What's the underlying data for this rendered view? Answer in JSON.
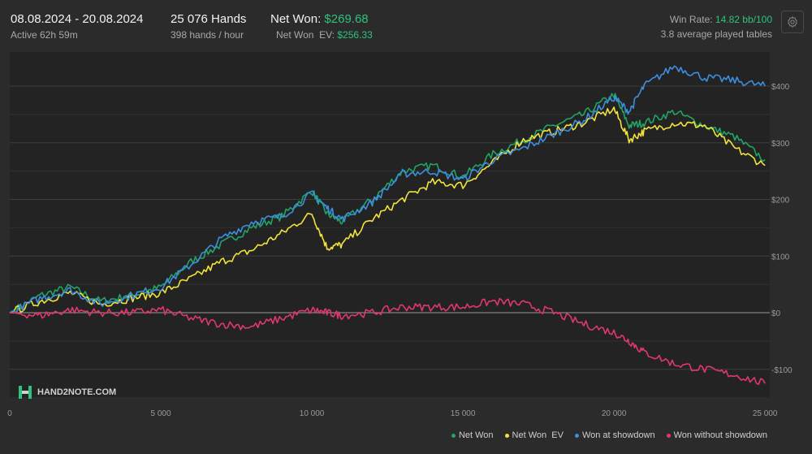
{
  "header": {
    "date_range": "08.08.2024 - 20.08.2024",
    "active": "Active 62h 59m",
    "hands": "25 076 Hands",
    "hands_per_hour": "398 hands / hour",
    "net_won_label": "Net Won:",
    "net_won_value": "$269.68",
    "net_won_ev_label": "Net Won  EV:",
    "net_won_ev_value": "$256.33",
    "win_rate_label": "Win Rate:",
    "win_rate_value": "14.82 bb/100",
    "avg_tables": "3.8 average played tables"
  },
  "logo": {
    "text": "HAND2NOTE.COM"
  },
  "icons": {
    "settings": "gear-icon",
    "logo": "hand2note-logo-icon"
  },
  "colors": {
    "net_won": "#22a464",
    "net_won_ev": "#f2e33a",
    "showdown": "#3c8ee0",
    "non_showdown": "#e0386a",
    "accent_green": "#2ec27e"
  },
  "chart_data": {
    "type": "line",
    "xlabel": "",
    "ylabel": "",
    "xlim": [
      0,
      25076
    ],
    "ylim": [
      -130,
      450
    ],
    "x_ticks": [
      0,
      5000,
      10000,
      15000,
      20000,
      25000
    ],
    "x_tick_labels": [
      "0",
      "5 000",
      "10 000",
      "15 000",
      "20 000",
      "25 000"
    ],
    "y_ticks": [
      400,
      300,
      200,
      100,
      0,
      -100
    ],
    "y_tick_labels": [
      "$400",
      "$300",
      "$200",
      "$100",
      "$0",
      "-$100"
    ],
    "grid": true,
    "legend_position": "bottom-right",
    "x": [
      0,
      1000,
      2000,
      3000,
      4000,
      5000,
      6000,
      7000,
      8000,
      9000,
      10000,
      10500,
      11000,
      12000,
      13000,
      14000,
      15000,
      16000,
      17000,
      18000,
      19000,
      20000,
      20500,
      21000,
      22000,
      23000,
      24000,
      25000
    ],
    "series": [
      {
        "name": "Net Won",
        "values": [
          0,
          30,
          45,
          20,
          30,
          45,
          90,
          120,
          150,
          170,
          215,
          175,
          160,
          200,
          250,
          260,
          240,
          280,
          305,
          330,
          350,
          385,
          330,
          335,
          355,
          330,
          310,
          270
        ]
      },
      {
        "name": "Net Won  EV",
        "values": [
          0,
          20,
          35,
          15,
          25,
          35,
          60,
          90,
          110,
          140,
          175,
          115,
          120,
          165,
          200,
          230,
          225,
          265,
          305,
          320,
          335,
          360,
          305,
          320,
          335,
          330,
          290,
          260
        ]
      },
      {
        "name": "Won at showdown",
        "values": [
          0,
          25,
          40,
          15,
          30,
          45,
          85,
          130,
          160,
          170,
          210,
          185,
          165,
          195,
          245,
          250,
          235,
          270,
          290,
          315,
          340,
          380,
          355,
          400,
          435,
          415,
          410,
          400
        ]
      },
      {
        "name": "Won without showdown",
        "values": [
          0,
          -5,
          5,
          0,
          0,
          5,
          -10,
          -20,
          -25,
          -10,
          5,
          0,
          -5,
          0,
          10,
          10,
          10,
          20,
          15,
          0,
          -20,
          -35,
          -50,
          -70,
          -90,
          -100,
          -110,
          -125
        ]
      }
    ]
  }
}
